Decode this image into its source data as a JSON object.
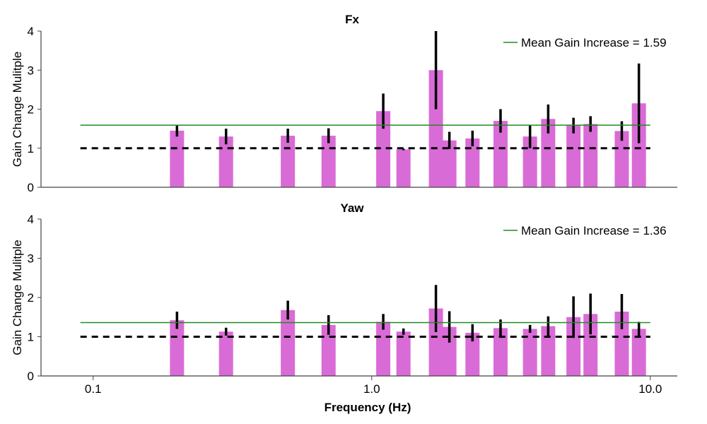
{
  "chart_data": [
    {
      "type": "bar",
      "title": "Fx",
      "ylabel": "Gain Change Mulitple",
      "xlabel": "",
      "xscale": "log",
      "xlim": [
        0.065,
        12.5
      ],
      "ylim": [
        0,
        4
      ],
      "yticks": [
        "0",
        "1",
        "2",
        "3",
        "4"
      ],
      "xticks": [],
      "legend": {
        "label": "Mean Gain Increase = 1.59",
        "placement": "top-right"
      },
      "mean_line": 1.59,
      "baseline": 1.0,
      "bar_color": "#d96bd6",
      "mean_color": "#228b22",
      "points": [
        {
          "x": 0.2,
          "y": 1.45,
          "err": 0.15
        },
        {
          "x": 0.3,
          "y": 1.3,
          "err": 0.2
        },
        {
          "x": 0.5,
          "y": 1.32,
          "err": 0.18
        },
        {
          "x": 0.7,
          "y": 1.32,
          "err": 0.19
        },
        {
          "x": 1.1,
          "y": 1.95,
          "err": 0.45
        },
        {
          "x": 1.3,
          "y": 0.97,
          "err": 0.02
        },
        {
          "x": 1.7,
          "y": 3.0,
          "err": 1.0
        },
        {
          "x": 1.9,
          "y": 1.2,
          "err": 0.22
        },
        {
          "x": 2.3,
          "y": 1.25,
          "err": 0.2
        },
        {
          "x": 2.9,
          "y": 1.7,
          "err": 0.3
        },
        {
          "x": 3.7,
          "y": 1.3,
          "err": 0.3
        },
        {
          "x": 4.3,
          "y": 1.75,
          "err": 0.37
        },
        {
          "x": 5.3,
          "y": 1.58,
          "err": 0.2
        },
        {
          "x": 6.1,
          "y": 1.62,
          "err": 0.2
        },
        {
          "x": 7.9,
          "y": 1.44,
          "err": 0.25
        },
        {
          "x": 9.1,
          "y": 2.15,
          "err": 1.02
        }
      ]
    },
    {
      "type": "bar",
      "title": "Yaw",
      "ylabel": "Gain Change Mulitple",
      "xlabel": "Frequency (Hz)",
      "xscale": "log",
      "xlim": [
        0.065,
        12.5
      ],
      "ylim": [
        0,
        4
      ],
      "yticks": [
        "0",
        "1",
        "2",
        "3",
        "4"
      ],
      "xticks": [
        {
          "value": 0.1,
          "label": "0.1"
        },
        {
          "value": 1.0,
          "label": "1.0"
        },
        {
          "value": 10.0,
          "label": "10.0"
        }
      ],
      "legend": {
        "label": "Mean Gain Increase = 1.36",
        "placement": "top-right"
      },
      "mean_line": 1.36,
      "baseline": 1.0,
      "bar_color": "#d96bd6",
      "mean_color": "#228b22",
      "points": [
        {
          "x": 0.2,
          "y": 1.42,
          "err": 0.22
        },
        {
          "x": 0.3,
          "y": 1.13,
          "err": 0.1
        },
        {
          "x": 0.5,
          "y": 1.68,
          "err": 0.24
        },
        {
          "x": 0.7,
          "y": 1.3,
          "err": 0.25
        },
        {
          "x": 1.1,
          "y": 1.38,
          "err": 0.2
        },
        {
          "x": 1.3,
          "y": 1.13,
          "err": 0.08
        },
        {
          "x": 1.7,
          "y": 1.72,
          "err": 0.6
        },
        {
          "x": 1.9,
          "y": 1.25,
          "err": 0.4
        },
        {
          "x": 2.3,
          "y": 1.1,
          "err": 0.22
        },
        {
          "x": 2.9,
          "y": 1.22,
          "err": 0.22
        },
        {
          "x": 3.7,
          "y": 1.2,
          "err": 0.1
        },
        {
          "x": 4.3,
          "y": 1.27,
          "err": 0.25
        },
        {
          "x": 5.3,
          "y": 1.5,
          "err": 0.53
        },
        {
          "x": 6.1,
          "y": 1.58,
          "err": 0.52
        },
        {
          "x": 7.9,
          "y": 1.64,
          "err": 0.45
        },
        {
          "x": 9.1,
          "y": 1.2,
          "err": 0.18
        }
      ]
    }
  ]
}
